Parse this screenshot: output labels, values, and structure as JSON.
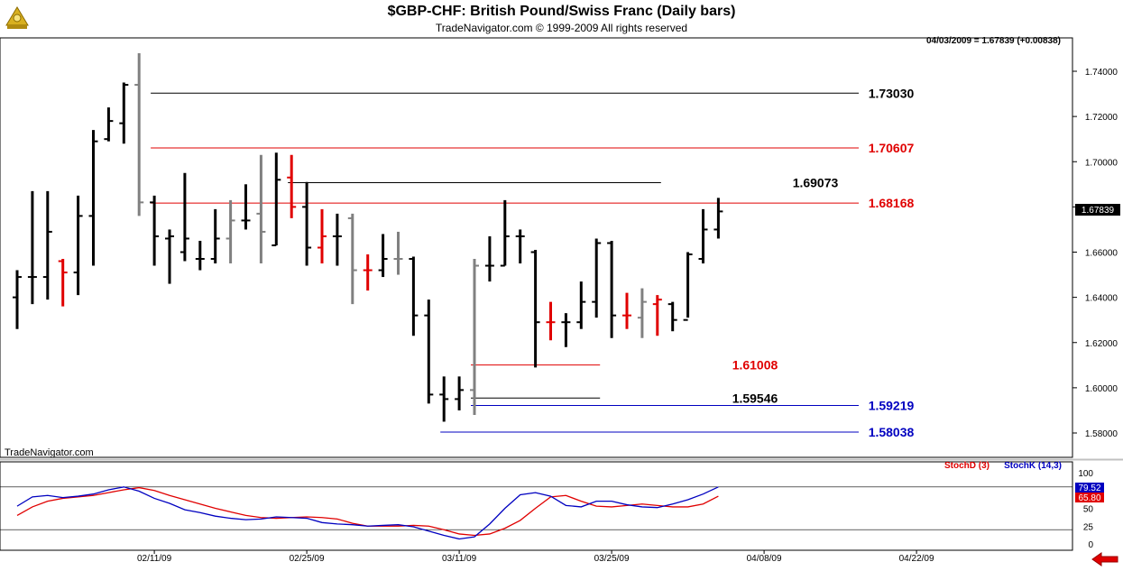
{
  "header": {
    "title": "$GBP-CHF:  British Pound/Swiss Franc  (Daily bars)",
    "subtitle": "TradeNavigator.com © 1999-2009 All rights reserved",
    "logo_icon": "sextant-logo-icon"
  },
  "price_panel": {
    "readout": "04/03/2009 = 1.67839 (+0.00838)",
    "watermark": "TradeNavigator.com",
    "last_price_label": "1.67839"
  },
  "stoch_panel": {
    "stochd_label": "StochD (3)",
    "stochk_label": "StochK (14,3)",
    "stochk_value": "79.52",
    "stochd_value": "65.80"
  },
  "footer": {
    "exit_icon": "red-arrow-left-icon"
  },
  "colors": {
    "up": "#000000",
    "down": "#e00000",
    "inside": "#808080",
    "level_black": "#000000",
    "level_red": "#e00000",
    "level_blue": "#0000c0",
    "stochk": "#0000c0",
    "stochd": "#e00000"
  },
  "chart_data": [
    {
      "type": "ohlc",
      "title": "$GBP-CHF:  British Pound/Swiss Franc  (Daily bars)",
      "y_ticks": [
        "1.74000",
        "1.72000",
        "1.70000",
        "1.68000",
        "1.66000",
        "1.64000",
        "1.62000",
        "1.60000",
        "1.58000"
      ],
      "ylim": [
        1.573,
        1.753
      ],
      "x_ticks": [
        "02/11/09",
        "02/25/09",
        "03/11/09",
        "03/25/09",
        "04/08/09",
        "04/22/09"
      ],
      "bars": [
        {
          "h": 1.652,
          "l": 1.626,
          "o": 1.64,
          "c": 1.649,
          "k": "up"
        },
        {
          "h": 1.687,
          "l": 1.637,
          "o": 1.649,
          "c": 1.649,
          "k": "up"
        },
        {
          "h": 1.687,
          "l": 1.639,
          "o": 1.649,
          "c": 1.669,
          "k": "up"
        },
        {
          "h": 1.657,
          "l": 1.636,
          "o": 1.656,
          "c": 1.651,
          "k": "down"
        },
        {
          "h": 1.685,
          "l": 1.641,
          "o": 1.651,
          "c": 1.676,
          "k": "up"
        },
        {
          "h": 1.714,
          "l": 1.654,
          "o": 1.676,
          "c": 1.709,
          "k": "up"
        },
        {
          "h": 1.724,
          "l": 1.709,
          "o": 1.71,
          "c": 1.718,
          "k": "up"
        },
        {
          "h": 1.735,
          "l": 1.708,
          "o": 1.717,
          "c": 1.734,
          "k": "up"
        },
        {
          "h": 1.748,
          "l": 1.676,
          "o": 1.734,
          "c": 1.682,
          "k": "inside"
        },
        {
          "h": 1.685,
          "l": 1.654,
          "o": 1.682,
          "c": 1.667,
          "k": "up"
        },
        {
          "h": 1.67,
          "l": 1.646,
          "o": 1.666,
          "c": 1.667,
          "k": "up"
        },
        {
          "h": 1.695,
          "l": 1.656,
          "o": 1.66,
          "c": 1.666,
          "k": "up"
        },
        {
          "h": 1.665,
          "l": 1.652,
          "o": 1.657,
          "c": 1.657,
          "k": "up"
        },
        {
          "h": 1.679,
          "l": 1.655,
          "o": 1.657,
          "c": 1.666,
          "k": "up"
        },
        {
          "h": 1.683,
          "l": 1.655,
          "o": 1.666,
          "c": 1.674,
          "k": "inside"
        },
        {
          "h": 1.69,
          "l": 1.67,
          "o": 1.674,
          "c": 1.674,
          "k": "up"
        },
        {
          "h": 1.703,
          "l": 1.655,
          "o": 1.677,
          "c": 1.669,
          "k": "inside"
        },
        {
          "h": 1.704,
          "l": 1.663,
          "o": 1.663,
          "c": 1.692,
          "k": "up"
        },
        {
          "h": 1.703,
          "l": 1.675,
          "o": 1.693,
          "c": 1.68,
          "k": "down"
        },
        {
          "h": 1.691,
          "l": 1.654,
          "o": 1.68,
          "c": 1.662,
          "k": "up"
        },
        {
          "h": 1.679,
          "l": 1.655,
          "o": 1.662,
          "c": 1.667,
          "k": "down"
        },
        {
          "h": 1.677,
          "l": 1.654,
          "o": 1.667,
          "c": 1.667,
          "k": "up"
        },
        {
          "h": 1.677,
          "l": 1.637,
          "o": 1.675,
          "c": 1.652,
          "k": "inside"
        },
        {
          "h": 1.659,
          "l": 1.643,
          "o": 1.652,
          "c": 1.652,
          "k": "down"
        },
        {
          "h": 1.668,
          "l": 1.649,
          "o": 1.652,
          "c": 1.657,
          "k": "up"
        },
        {
          "h": 1.669,
          "l": 1.65,
          "o": 1.657,
          "c": 1.657,
          "k": "inside"
        },
        {
          "h": 1.658,
          "l": 1.623,
          "o": 1.657,
          "c": 1.632,
          "k": "up"
        },
        {
          "h": 1.639,
          "l": 1.593,
          "o": 1.632,
          "c": 1.597,
          "k": "up"
        },
        {
          "h": 1.605,
          "l": 1.585,
          "o": 1.597,
          "c": 1.595,
          "k": "up"
        },
        {
          "h": 1.605,
          "l": 1.59,
          "o": 1.595,
          "c": 1.599,
          "k": "up"
        },
        {
          "h": 1.657,
          "l": 1.588,
          "o": 1.599,
          "c": 1.654,
          "k": "inside"
        },
        {
          "h": 1.667,
          "l": 1.647,
          "o": 1.654,
          "c": 1.654,
          "k": "up"
        },
        {
          "h": 1.683,
          "l": 1.654,
          "o": 1.654,
          "c": 1.667,
          "k": "up"
        },
        {
          "h": 1.67,
          "l": 1.655,
          "o": 1.667,
          "c": 1.667,
          "k": "up"
        },
        {
          "h": 1.661,
          "l": 1.609,
          "o": 1.66,
          "c": 1.629,
          "k": "up"
        },
        {
          "h": 1.638,
          "l": 1.621,
          "o": 1.629,
          "c": 1.629,
          "k": "down"
        },
        {
          "h": 1.633,
          "l": 1.618,
          "o": 1.629,
          "c": 1.629,
          "k": "up"
        },
        {
          "h": 1.647,
          "l": 1.626,
          "o": 1.629,
          "c": 1.638,
          "k": "up"
        },
        {
          "h": 1.666,
          "l": 1.631,
          "o": 1.638,
          "c": 1.664,
          "k": "up"
        },
        {
          "h": 1.665,
          "l": 1.622,
          "o": 1.664,
          "c": 1.632,
          "k": "up"
        },
        {
          "h": 1.642,
          "l": 1.626,
          "o": 1.632,
          "c": 1.632,
          "k": "down"
        },
        {
          "h": 1.644,
          "l": 1.622,
          "o": 1.631,
          "c": 1.638,
          "k": "inside"
        },
        {
          "h": 1.641,
          "l": 1.623,
          "o": 1.637,
          "c": 1.639,
          "k": "down"
        },
        {
          "h": 1.638,
          "l": 1.625,
          "o": 1.637,
          "c": 1.63,
          "k": "up"
        },
        {
          "h": 1.66,
          "l": 1.631,
          "o": 1.63,
          "c": 1.659,
          "k": "up"
        },
        {
          "h": 1.679,
          "l": 1.655,
          "o": 1.657,
          "c": 1.67,
          "k": "up"
        },
        {
          "h": 1.684,
          "l": 1.666,
          "o": 1.67,
          "c": 1.678,
          "k": "up"
        }
      ],
      "levels": [
        {
          "value": 1.7303,
          "label": "1.73030",
          "color": "black",
          "from": 9,
          "to": 47
        },
        {
          "value": 1.70607,
          "label": "1.70607",
          "color": "red",
          "from": 9,
          "to": 47
        },
        {
          "value": 1.69073,
          "label": "1.69073",
          "color": "black",
          "from": 18,
          "to": 42
        },
        {
          "value": 1.68168,
          "label": "1.68168",
          "color": "red",
          "from": 9,
          "to": 47
        },
        {
          "value": 1.61008,
          "label": "1.61008",
          "color": "red",
          "from": 30,
          "to": 38
        },
        {
          "value": 1.59546,
          "label": "1.59546",
          "color": "black",
          "from": 30,
          "to": 38
        },
        {
          "value": 1.59219,
          "label": "1.59219",
          "color": "blue",
          "from": 30,
          "to": 47
        },
        {
          "value": 1.58038,
          "label": "1.58038",
          "color": "blue",
          "from": 28,
          "to": 47
        }
      ]
    },
    {
      "type": "line",
      "title": "",
      "y_ticks": [
        "100",
        "75",
        "50",
        "25",
        "0"
      ],
      "ylim": [
        0,
        100
      ],
      "guides": [
        80,
        20
      ],
      "series": [
        {
          "name": "StochD (3)",
          "color": "red",
          "values": [
            40,
            52,
            60,
            64,
            66,
            68,
            72,
            76,
            79,
            75,
            68,
            62,
            56,
            50,
            45,
            40,
            37,
            36,
            37,
            38,
            37,
            35,
            29,
            25,
            25,
            25,
            26,
            25,
            20,
            14,
            12,
            14,
            22,
            33,
            50,
            66,
            68,
            60,
            53,
            52,
            54,
            56,
            54,
            52,
            52,
            56,
            67
          ]
        },
        {
          "name": "StochK (14,3)",
          "color": "blue",
          "values": [
            53,
            66,
            68,
            65,
            67,
            70,
            76,
            80,
            74,
            64,
            57,
            48,
            44,
            39,
            36,
            34,
            35,
            38,
            37,
            36,
            30,
            28,
            27,
            25,
            26,
            27,
            24,
            18,
            12,
            7,
            10,
            28,
            50,
            69,
            72,
            67,
            54,
            52,
            60,
            60,
            55,
            52,
            51,
            56,
            62,
            70,
            80
          ]
        }
      ]
    }
  ]
}
